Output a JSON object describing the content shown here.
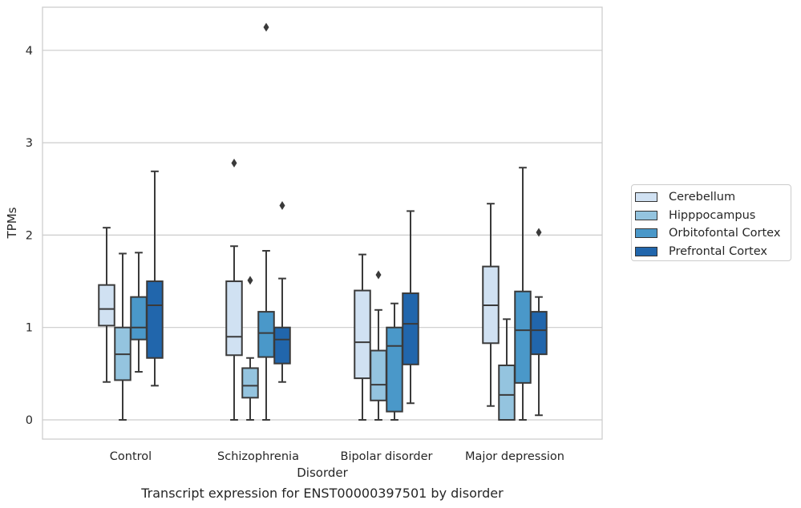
{
  "caption": "Transcript expression for ENST00000397501 by disorder",
  "colors": {
    "Cerebellum": "#d0e1f2",
    "Hipppocampus": "#94c4df",
    "Orbitofontal Cortex": "#4a98c9",
    "Prefrontal Cortex": "#2166ac",
    "box_edge": "#3a3a3a",
    "grid": "#cccccc"
  },
  "chart_data": {
    "type": "box",
    "xlabel": "Disorder",
    "ylabel": "TPMs",
    "ylim": [
      -0.2,
      4.48
    ],
    "yticks": [
      0,
      1,
      2,
      3,
      4
    ],
    "grid": "horizontal",
    "legend_position": "right",
    "categories": [
      "Control",
      "Schizophrenia",
      "Bipolar disorder",
      "Major depression"
    ],
    "series": [
      {
        "name": "Cerebellum",
        "boxes": [
          {
            "whislo": 0.41,
            "q1": 1.02,
            "med": 1.2,
            "q3": 1.46,
            "whishi": 2.08,
            "fliers": []
          },
          {
            "whislo": 0.0,
            "q1": 0.7,
            "med": 0.9,
            "q3": 1.5,
            "whishi": 1.88,
            "fliers": [
              2.78
            ]
          },
          {
            "whislo": 0.0,
            "q1": 0.45,
            "med": 0.84,
            "q3": 1.4,
            "whishi": 1.79,
            "fliers": []
          },
          {
            "whislo": 0.15,
            "q1": 0.83,
            "med": 1.24,
            "q3": 1.66,
            "whishi": 2.34,
            "fliers": []
          }
        ]
      },
      {
        "name": "Hipppocampus",
        "boxes": [
          {
            "whislo": 0.0,
            "q1": 0.43,
            "med": 0.71,
            "q3": 1.0,
            "whishi": 1.8,
            "fliers": []
          },
          {
            "whislo": 0.0,
            "q1": 0.24,
            "med": 0.37,
            "q3": 0.56,
            "whishi": 0.67,
            "fliers": [
              1.51
            ]
          },
          {
            "whislo": 0.0,
            "q1": 0.21,
            "med": 0.38,
            "q3": 0.75,
            "whishi": 1.19,
            "fliers": [
              1.57
            ]
          },
          {
            "whislo": 0.0,
            "q1": 0.0,
            "med": 0.27,
            "q3": 0.59,
            "whishi": 1.09,
            "fliers": []
          }
        ]
      },
      {
        "name": "Orbitofontal Cortex",
        "boxes": [
          {
            "whislo": 0.52,
            "q1": 0.87,
            "med": 1.0,
            "q3": 1.33,
            "whishi": 1.81,
            "fliers": []
          },
          {
            "whislo": 0.0,
            "q1": 0.68,
            "med": 0.94,
            "q3": 1.17,
            "whishi": 1.83,
            "fliers": [
              4.25
            ]
          },
          {
            "whislo": 0.0,
            "q1": 0.09,
            "med": 0.8,
            "q3": 1.0,
            "whishi": 1.26,
            "fliers": []
          },
          {
            "whislo": 0.0,
            "q1": 0.4,
            "med": 0.97,
            "q3": 1.39,
            "whishi": 2.73,
            "fliers": []
          }
        ]
      },
      {
        "name": "Prefrontal Cortex",
        "boxes": [
          {
            "whislo": 0.37,
            "q1": 0.67,
            "med": 1.24,
            "q3": 1.5,
            "whishi": 2.69,
            "fliers": []
          },
          {
            "whislo": 0.41,
            "q1": 0.61,
            "med": 0.87,
            "q3": 1.0,
            "whishi": 1.53,
            "fliers": [
              2.32
            ]
          },
          {
            "whislo": 0.18,
            "q1": 0.6,
            "med": 1.04,
            "q3": 1.37,
            "whishi": 2.26,
            "fliers": []
          },
          {
            "whislo": 0.05,
            "q1": 0.71,
            "med": 0.97,
            "q3": 1.17,
            "whishi": 1.33,
            "fliers": [
              2.03
            ]
          }
        ]
      }
    ]
  }
}
